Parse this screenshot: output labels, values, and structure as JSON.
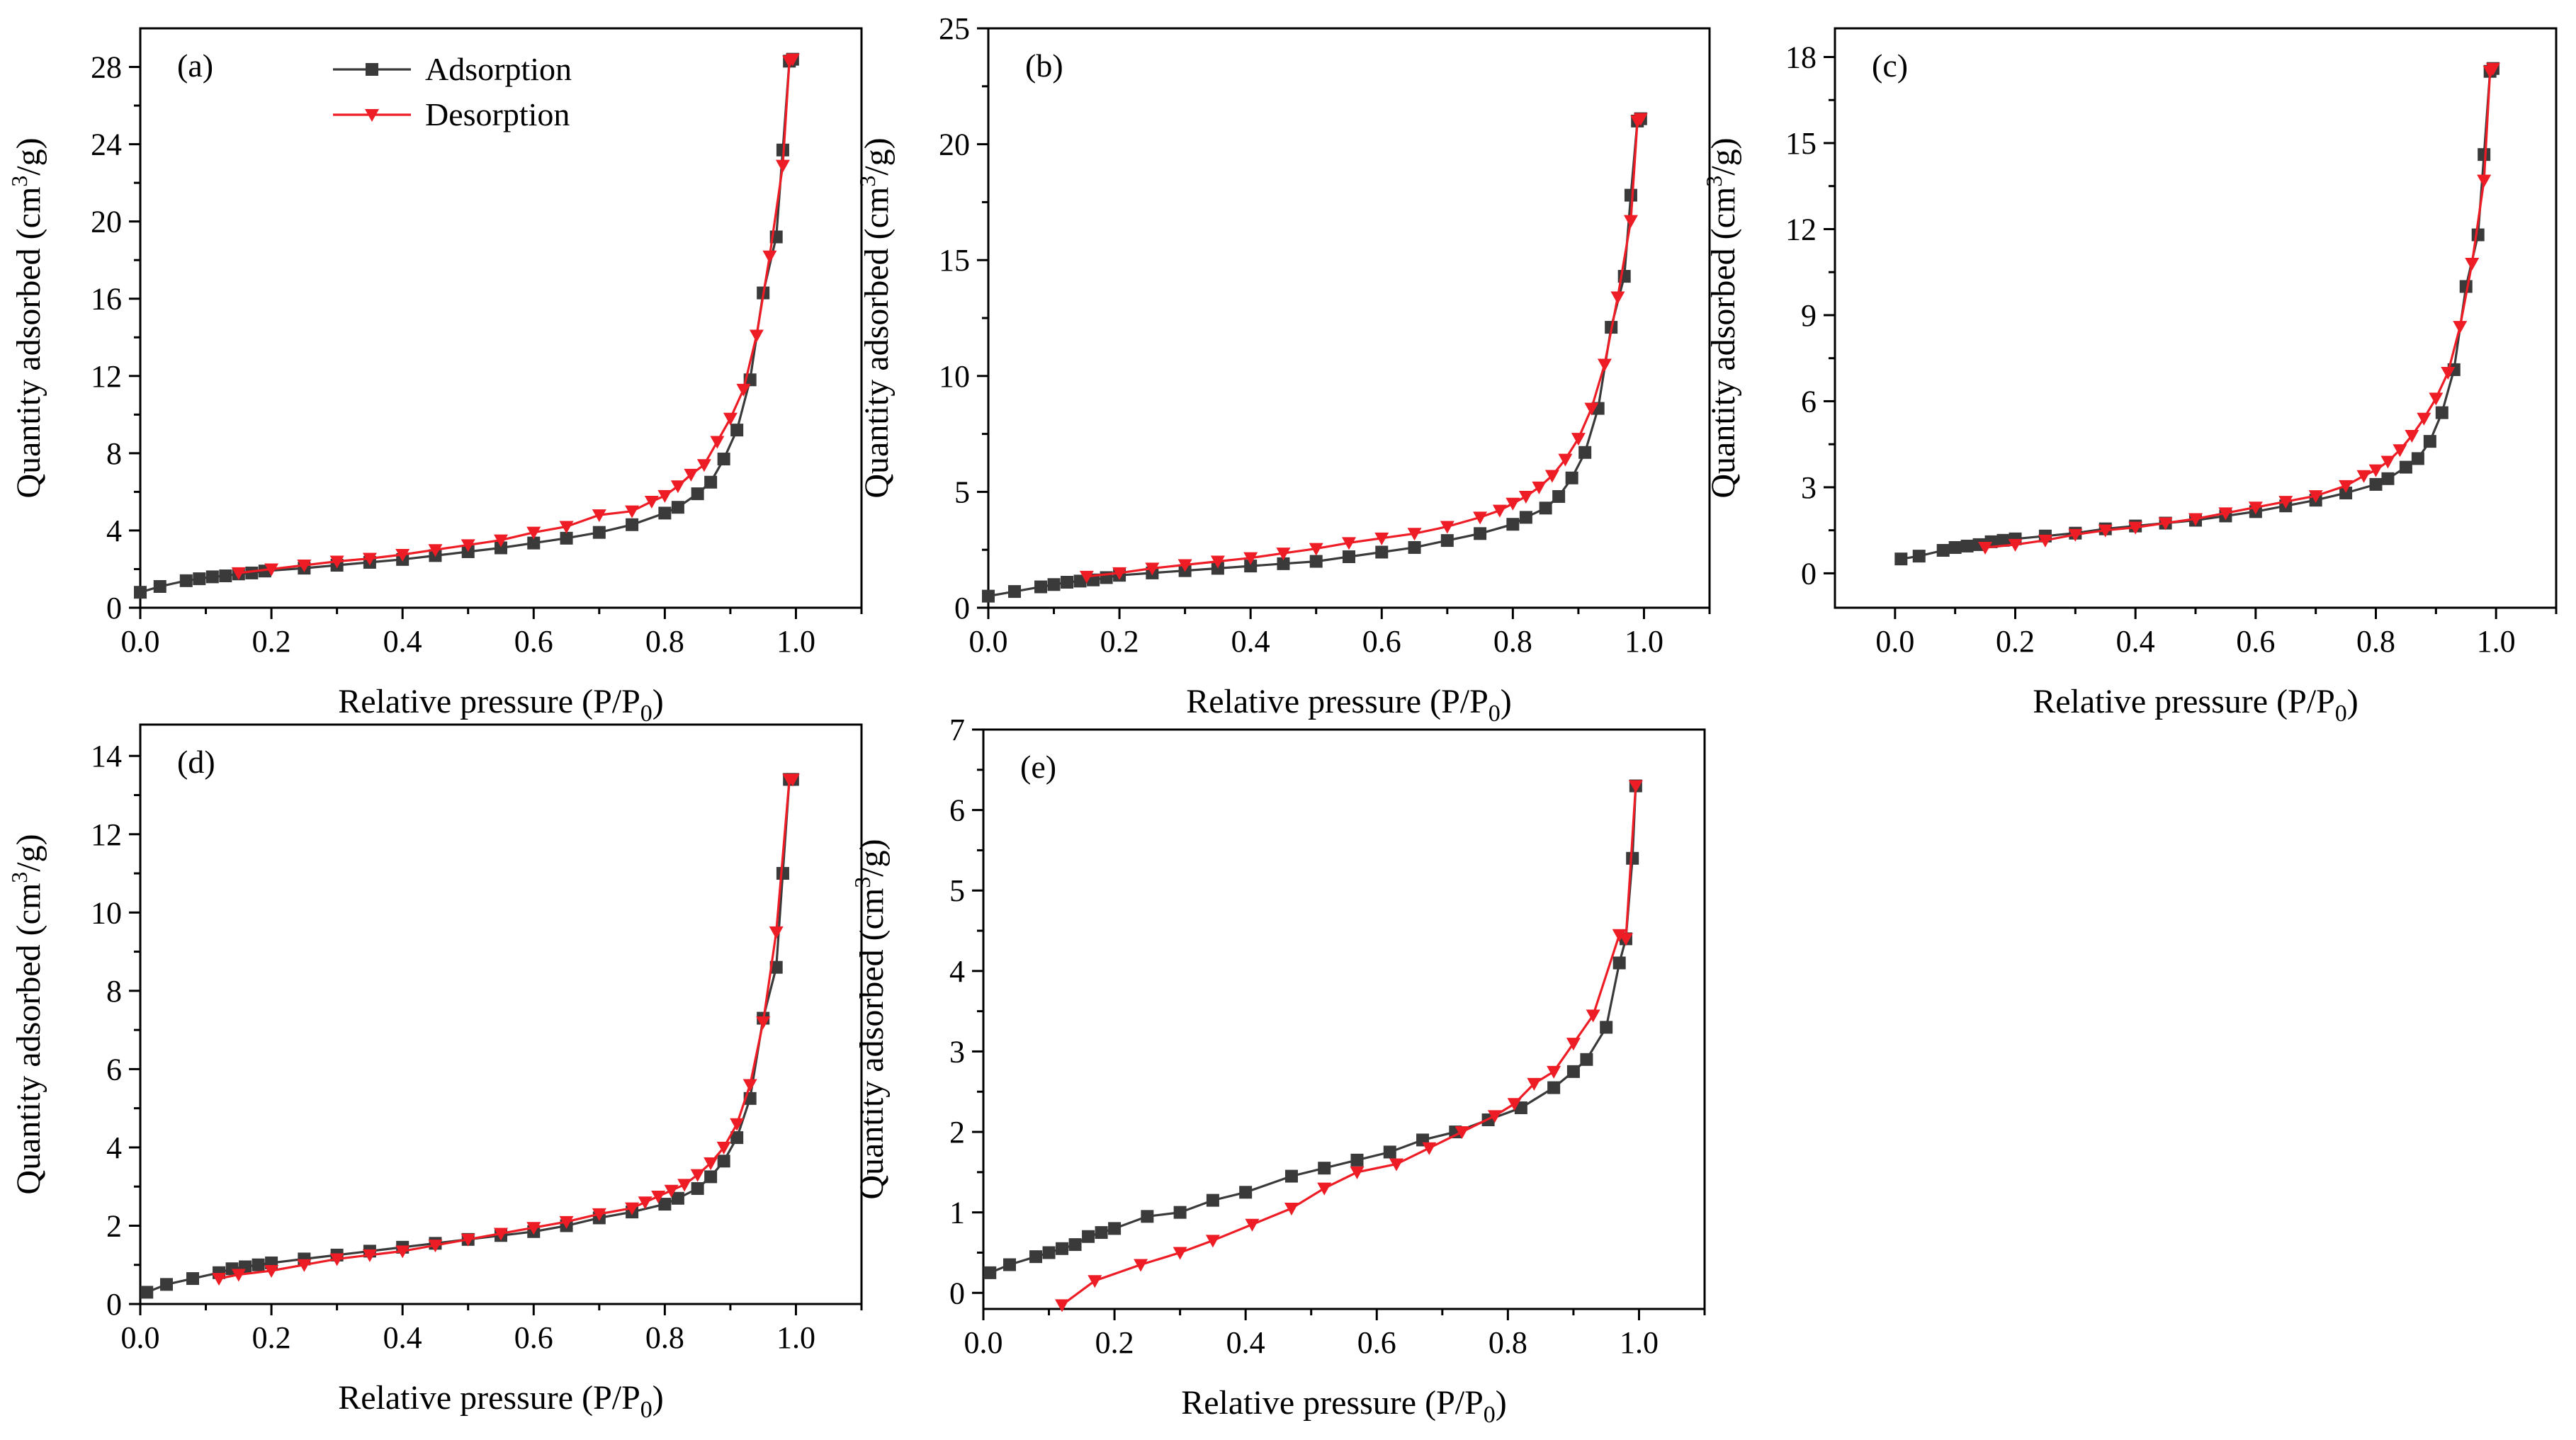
{
  "figure": {
    "legend": {
      "adsorption": "Adsorption",
      "desorption": "Desorption"
    },
    "colors": {
      "adsorption": "#3a3a3a",
      "desorption": "#ee1c25"
    }
  },
  "chart_data": [
    {
      "type": "line",
      "panel": "(a)",
      "xlabel": "Relative pressure (P/P0)",
      "ylabel": "Quantity adsorbed (cm3/g)",
      "xlim": [
        0,
        1.1
      ],
      "ylim": [
        0,
        30
      ],
      "xticks": [
        0.0,
        0.2,
        0.4,
        0.6,
        0.8,
        1.0
      ],
      "xtick_labels": [
        "0.0",
        "0.2",
        "0.4",
        "0.6",
        "0.8",
        "1.0"
      ],
      "yticks": [
        0,
        4,
        8,
        12,
        16,
        20,
        24,
        28
      ],
      "ytick_labels": [
        "0",
        "4",
        "8",
        "12",
        "16",
        "20",
        "24",
        "28"
      ],
      "series": [
        {
          "name": "Adsorption",
          "x": [
            0.0,
            0.03,
            0.07,
            0.09,
            0.11,
            0.13,
            0.15,
            0.17,
            0.19,
            0.25,
            0.3,
            0.35,
            0.4,
            0.45,
            0.5,
            0.55,
            0.6,
            0.65,
            0.7,
            0.75,
            0.8,
            0.82,
            0.85,
            0.87,
            0.89,
            0.91,
            0.93,
            0.95,
            0.97,
            0.98,
            0.99,
            0.995
          ],
          "y": [
            0.8,
            1.1,
            1.4,
            1.5,
            1.6,
            1.65,
            1.75,
            1.8,
            1.9,
            2.05,
            2.2,
            2.35,
            2.5,
            2.7,
            2.9,
            3.1,
            3.35,
            3.6,
            3.9,
            4.3,
            4.9,
            5.2,
            5.9,
            6.5,
            7.7,
            9.2,
            11.8,
            16.3,
            19.2,
            23.7,
            28.3,
            28.4
          ]
        },
        {
          "name": "Desorption",
          "x": [
            0.995,
            0.99,
            0.98,
            0.96,
            0.94,
            0.92,
            0.9,
            0.88,
            0.86,
            0.84,
            0.82,
            0.8,
            0.78,
            0.75,
            0.7,
            0.65,
            0.6,
            0.55,
            0.5,
            0.45,
            0.4,
            0.35,
            0.3,
            0.25,
            0.2,
            0.15
          ],
          "y": [
            28.4,
            28.3,
            22.9,
            18.2,
            14.1,
            11.3,
            9.8,
            8.6,
            7.4,
            6.9,
            6.3,
            5.8,
            5.5,
            5.0,
            4.8,
            4.2,
            3.9,
            3.5,
            3.25,
            3.0,
            2.75,
            2.55,
            2.4,
            2.2,
            2.0,
            1.8
          ]
        }
      ]
    },
    {
      "type": "line",
      "panel": "(b)",
      "xlabel": "Relative pressure (P/P0)",
      "ylabel": "Quantity adsorbed (cm3/g)",
      "xlim": [
        0,
        1.1
      ],
      "ylim": [
        0,
        25
      ],
      "xticks": [
        0.0,
        0.2,
        0.4,
        0.6,
        0.8,
        1.0
      ],
      "xtick_labels": [
        "0.0",
        "0.2",
        "0.4",
        "0.6",
        "0.8",
        "1.0"
      ],
      "yticks": [
        0,
        5,
        10,
        15,
        20,
        25
      ],
      "ytick_labels": [
        "0",
        "5",
        "10",
        "15",
        "20",
        "25"
      ],
      "series": [
        {
          "name": "Adsorption",
          "x": [
            0.0,
            0.04,
            0.08,
            0.1,
            0.12,
            0.14,
            0.16,
            0.18,
            0.2,
            0.25,
            0.3,
            0.35,
            0.4,
            0.45,
            0.5,
            0.55,
            0.6,
            0.65,
            0.7,
            0.75,
            0.8,
            0.82,
            0.85,
            0.87,
            0.89,
            0.91,
            0.93,
            0.95,
            0.97,
            0.98,
            0.99,
            0.995
          ],
          "y": [
            0.5,
            0.7,
            0.9,
            1.0,
            1.1,
            1.15,
            1.2,
            1.3,
            1.4,
            1.5,
            1.6,
            1.7,
            1.8,
            1.9,
            2.0,
            2.2,
            2.4,
            2.6,
            2.9,
            3.2,
            3.6,
            3.9,
            4.3,
            4.8,
            5.6,
            6.7,
            8.6,
            12.1,
            14.3,
            17.8,
            21.0,
            21.1
          ]
        },
        {
          "name": "Desorption",
          "x": [
            0.995,
            0.99,
            0.98,
            0.96,
            0.94,
            0.92,
            0.9,
            0.88,
            0.86,
            0.84,
            0.82,
            0.8,
            0.78,
            0.75,
            0.7,
            0.65,
            0.6,
            0.55,
            0.5,
            0.45,
            0.4,
            0.35,
            0.3,
            0.25,
            0.2,
            0.15
          ],
          "y": [
            21.1,
            21.0,
            16.7,
            13.4,
            10.5,
            8.6,
            7.3,
            6.4,
            5.7,
            5.2,
            4.8,
            4.5,
            4.2,
            3.9,
            3.5,
            3.2,
            3.0,
            2.8,
            2.55,
            2.35,
            2.15,
            2.0,
            1.85,
            1.7,
            1.5,
            1.35
          ]
        }
      ]
    },
    {
      "type": "line",
      "panel": "(c)",
      "xlabel": "Relative pressure (P/P0)",
      "ylabel": "Quantity adsorbed (cm3/g)",
      "xlim": [
        -0.1,
        1.1
      ],
      "ylim": [
        -1.2,
        19
      ],
      "xticks": [
        0.0,
        0.2,
        0.4,
        0.6,
        0.8,
        1.0
      ],
      "xtick_labels": [
        "0.0",
        "0.2",
        "0.4",
        "0.6",
        "0.8",
        "1.0"
      ],
      "yticks": [
        0,
        3,
        6,
        9,
        12,
        15,
        18
      ],
      "ytick_labels": [
        "0",
        "3",
        "6",
        "9",
        "12",
        "15",
        "18"
      ],
      "series": [
        {
          "name": "Adsorption",
          "x": [
            0.01,
            0.04,
            0.08,
            0.1,
            0.12,
            0.14,
            0.16,
            0.18,
            0.2,
            0.25,
            0.3,
            0.35,
            0.4,
            0.45,
            0.5,
            0.55,
            0.6,
            0.65,
            0.7,
            0.75,
            0.8,
            0.82,
            0.85,
            0.87,
            0.89,
            0.91,
            0.93,
            0.95,
            0.97,
            0.98,
            0.99,
            0.995
          ],
          "y": [
            0.5,
            0.6,
            0.8,
            0.9,
            0.95,
            1.0,
            1.1,
            1.15,
            1.2,
            1.3,
            1.4,
            1.55,
            1.65,
            1.75,
            1.85,
            2.0,
            2.15,
            2.35,
            2.55,
            2.8,
            3.1,
            3.3,
            3.7,
            4.0,
            4.6,
            5.6,
            7.1,
            10.0,
            11.8,
            14.6,
            17.5,
            17.6
          ]
        },
        {
          "name": "Desorption",
          "x": [
            0.995,
            0.99,
            0.98,
            0.96,
            0.94,
            0.92,
            0.9,
            0.88,
            0.86,
            0.84,
            0.82,
            0.8,
            0.78,
            0.75,
            0.7,
            0.65,
            0.6,
            0.55,
            0.5,
            0.45,
            0.4,
            0.35,
            0.3,
            0.25,
            0.2,
            0.15
          ],
          "y": [
            17.6,
            17.5,
            13.7,
            10.8,
            8.6,
            7.0,
            6.1,
            5.4,
            4.8,
            4.3,
            3.9,
            3.6,
            3.4,
            3.05,
            2.7,
            2.5,
            2.3,
            2.1,
            1.9,
            1.75,
            1.6,
            1.5,
            1.35,
            1.15,
            1.0,
            0.9
          ]
        }
      ]
    },
    {
      "type": "line",
      "panel": "(d)",
      "xlabel": "Relative pressure (P/P0)",
      "ylabel": "Quantity adsorbed (cm3/g)",
      "xlim": [
        0,
        1.1
      ],
      "ylim": [
        0,
        14.8
      ],
      "xticks": [
        0.0,
        0.2,
        0.4,
        0.6,
        0.8,
        1.0
      ],
      "xtick_labels": [
        "0.0",
        "0.2",
        "0.4",
        "0.6",
        "0.8",
        "1.0"
      ],
      "yticks": [
        0,
        2,
        4,
        6,
        8,
        10,
        12,
        14
      ],
      "ytick_labels": [
        "0",
        "2",
        "4",
        "6",
        "8",
        "10",
        "12",
        "14"
      ],
      "series": [
        {
          "name": "Adsorption",
          "x": [
            0.01,
            0.04,
            0.08,
            0.12,
            0.14,
            0.16,
            0.18,
            0.2,
            0.25,
            0.3,
            0.35,
            0.4,
            0.45,
            0.5,
            0.55,
            0.6,
            0.65,
            0.7,
            0.75,
            0.8,
            0.82,
            0.85,
            0.87,
            0.89,
            0.91,
            0.93,
            0.95,
            0.97,
            0.98,
            0.99,
            0.995
          ],
          "y": [
            0.3,
            0.5,
            0.65,
            0.8,
            0.9,
            0.95,
            1.0,
            1.05,
            1.15,
            1.25,
            1.35,
            1.45,
            1.55,
            1.65,
            1.75,
            1.85,
            2.0,
            2.2,
            2.35,
            2.55,
            2.7,
            2.95,
            3.25,
            3.65,
            4.25,
            5.25,
            7.3,
            8.6,
            11.0,
            13.4,
            13.4
          ]
        },
        {
          "name": "Desorption",
          "x": [
            0.995,
            0.99,
            0.97,
            0.95,
            0.93,
            0.91,
            0.89,
            0.87,
            0.85,
            0.83,
            0.81,
            0.79,
            0.77,
            0.75,
            0.7,
            0.65,
            0.6,
            0.55,
            0.5,
            0.45,
            0.4,
            0.35,
            0.3,
            0.25,
            0.2,
            0.15,
            0.12
          ],
          "y": [
            13.4,
            13.4,
            9.5,
            7.2,
            5.6,
            4.6,
            4.0,
            3.6,
            3.3,
            3.05,
            2.9,
            2.75,
            2.6,
            2.45,
            2.3,
            2.1,
            1.95,
            1.8,
            1.65,
            1.5,
            1.35,
            1.25,
            1.15,
            1.0,
            0.85,
            0.75,
            0.65
          ]
        }
      ]
    },
    {
      "type": "line",
      "panel": "(e)",
      "xlabel": "Relative pressure (P/P0)",
      "ylabel": "Quantity adsorbed (cm3/g)",
      "xlim": [
        0,
        1.1
      ],
      "ylim": [
        -0.2,
        7
      ],
      "xticks": [
        0.0,
        0.2,
        0.4,
        0.6,
        0.8,
        1.0
      ],
      "xtick_labels": [
        "0.0",
        "0.2",
        "0.4",
        "0.6",
        "0.8",
        "1.0"
      ],
      "yticks": [
        0,
        1,
        2,
        3,
        4,
        5,
        6,
        7
      ],
      "ytick_labels": [
        "0",
        "1",
        "2",
        "3",
        "4",
        "5",
        "6",
        "7"
      ],
      "series": [
        {
          "name": "Adsorption",
          "x": [
            0.01,
            0.04,
            0.08,
            0.1,
            0.12,
            0.14,
            0.16,
            0.18,
            0.2,
            0.25,
            0.3,
            0.35,
            0.4,
            0.47,
            0.52,
            0.57,
            0.62,
            0.67,
            0.72,
            0.77,
            0.82,
            0.87,
            0.9,
            0.92,
            0.95,
            0.97,
            0.98,
            0.99,
            0.995
          ],
          "y": [
            0.25,
            0.35,
            0.45,
            0.5,
            0.55,
            0.6,
            0.7,
            0.75,
            0.8,
            0.95,
            1.0,
            1.15,
            1.25,
            1.45,
            1.55,
            1.65,
            1.75,
            1.9,
            2.0,
            2.15,
            2.3,
            2.55,
            2.75,
            2.9,
            3.3,
            4.1,
            4.4,
            5.4,
            6.3
          ]
        },
        {
          "name": "Desorption",
          "x": [
            0.995,
            0.98,
            0.97,
            0.93,
            0.9,
            0.87,
            0.84,
            0.81,
            0.78,
            0.73,
            0.68,
            0.63,
            0.57,
            0.52,
            0.47,
            0.41,
            0.35,
            0.3,
            0.24,
            0.17,
            0.12
          ],
          "y": [
            6.3,
            4.4,
            4.45,
            3.45,
            3.1,
            2.75,
            2.6,
            2.35,
            2.2,
            2.0,
            1.8,
            1.6,
            1.5,
            1.3,
            1.05,
            0.85,
            0.65,
            0.5,
            0.35,
            0.15,
            -0.15
          ]
        }
      ]
    }
  ]
}
